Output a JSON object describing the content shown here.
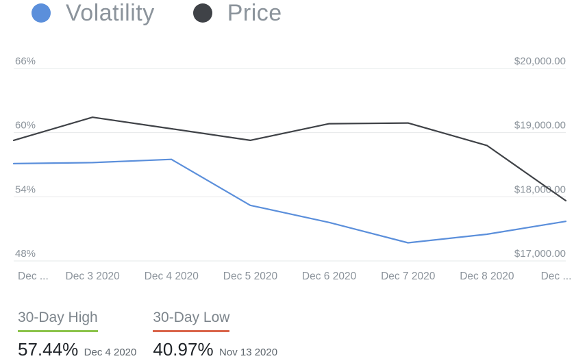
{
  "legend": [
    {
      "name": "Volatility",
      "color": "#5b8fdb"
    },
    {
      "name": "Price",
      "color": "#3f4247"
    }
  ],
  "chart_data": {
    "type": "line",
    "x": [
      "Dec ...",
      "Dec 3 2020",
      "Dec 4 2020",
      "Dec 5 2020",
      "Dec 6 2020",
      "Dec 7 2020",
      "Dec 8 2020",
      "Dec ..."
    ],
    "left_axis": {
      "ticks": [
        "66%",
        "60%",
        "54%",
        "48%"
      ],
      "range": [
        48,
        66
      ]
    },
    "right_axis": {
      "ticks": [
        "$20,000.00",
        "$19,000.00",
        "$18,000.00",
        "$17,000.00"
      ],
      "range": [
        17000,
        20000
      ]
    },
    "grid": true,
    "legend_position": "top-left",
    "series": [
      {
        "name": "Volatility",
        "axis": "left",
        "color": "#5b8fdb",
        "values": [
          57.1,
          57.2,
          57.5,
          53.2,
          51.6,
          49.7,
          50.5,
          51.7
        ]
      },
      {
        "name": "Price",
        "axis": "right",
        "color": "#3f4247",
        "values": [
          18880,
          19240,
          19060,
          18880,
          19140,
          19150,
          18800,
          17940
        ]
      }
    ]
  },
  "stats": {
    "high": {
      "label": "30-Day High",
      "value": "57.44%",
      "date": "Dec 4 2020",
      "color": "#8bc34a"
    },
    "low": {
      "label": "30-Day Low",
      "value": "40.97%",
      "date": "Nov 13 2020",
      "color": "#d9644a"
    }
  }
}
